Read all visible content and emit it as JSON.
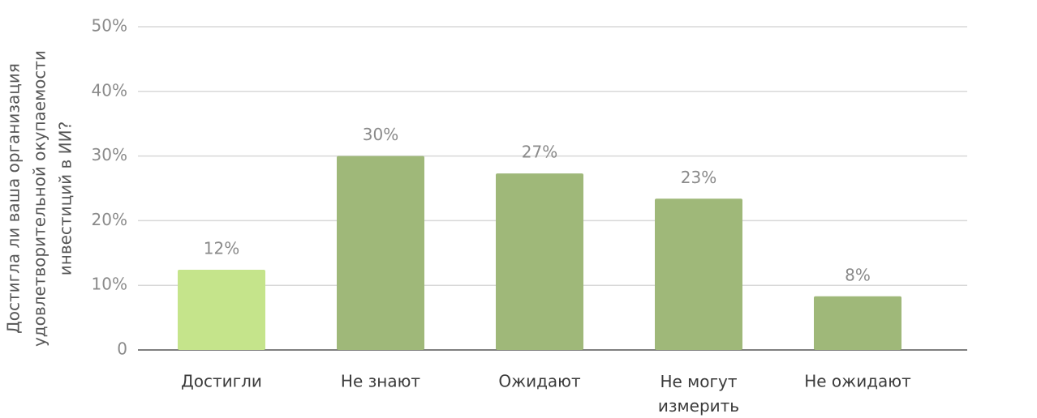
{
  "chart_data": {
    "type": "bar",
    "ylabel": [
      "Достигла ли ваша организация",
      "удовлетворительной окупаемости",
      "инвестиций в ИИ?"
    ],
    "categories": [
      "Достигли",
      "Не знают",
      "Ожидают",
      "Не могут измерить",
      "Не ожидают"
    ],
    "values": [
      12.4,
      30,
      27.3,
      23.4,
      8.3
    ],
    "value_labels": [
      "12%",
      "30%",
      "27%",
      "23%",
      "8%"
    ],
    "colors": [
      "#c5e48b",
      "#9fb879",
      "#9fb879",
      "#9fb879",
      "#9fb879"
    ],
    "ylim": [
      0,
      50
    ],
    "yticks": [
      0,
      {
        "value": 10,
        "label": "10%"
      },
      {
        "value": 20,
        "label": "20%"
      },
      {
        "value": 30,
        "label": "30%"
      },
      {
        "value": 40,
        "label": "40%"
      },
      {
        "value": 50,
        "label": "50%"
      }
    ],
    "grid": true
  }
}
